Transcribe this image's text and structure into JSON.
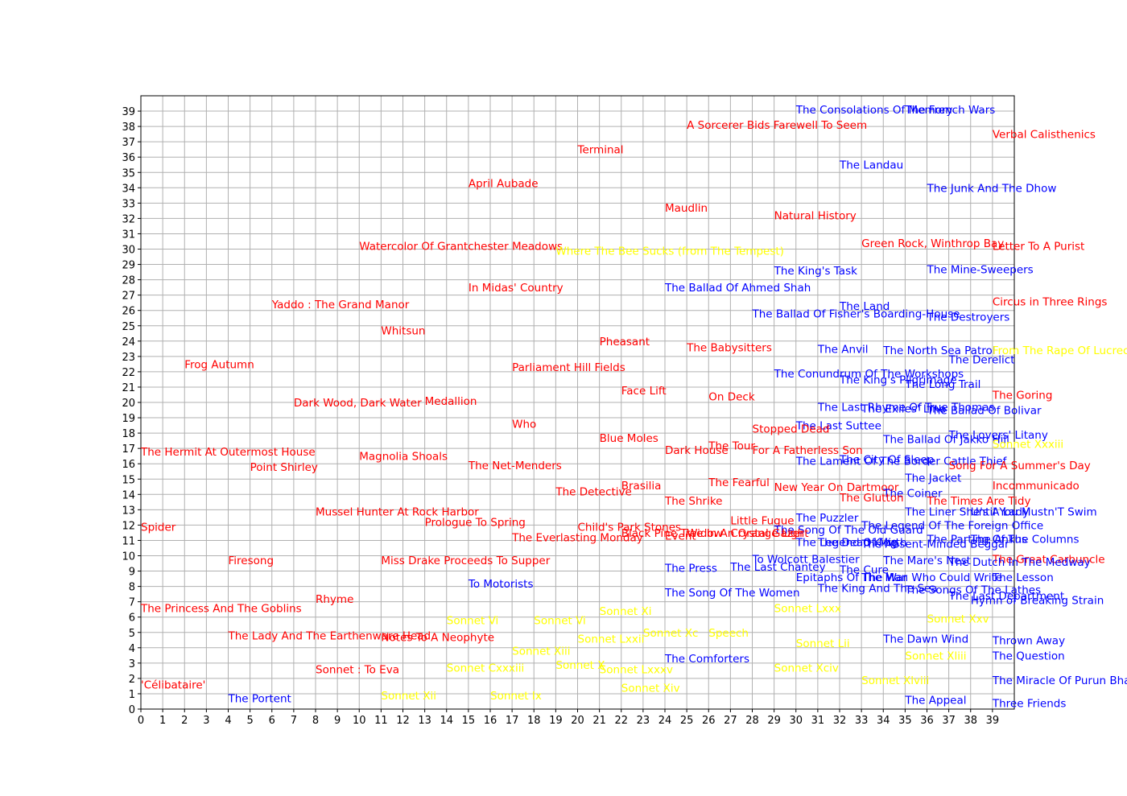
{
  "chart_data": {
    "type": "scatter",
    "title": "",
    "xlabel": "",
    "ylabel": "",
    "xlim": [
      0,
      40
    ],
    "ylim": [
      0,
      40
    ],
    "grid": true,
    "x_ticks": [
      "0",
      "1",
      "2",
      "3",
      "4",
      "5",
      "6",
      "7",
      "8",
      "9",
      "10",
      "11",
      "12",
      "13",
      "14",
      "15",
      "16",
      "17",
      "18",
      "19",
      "20",
      "21",
      "22",
      "23",
      "24",
      "25",
      "26",
      "27",
      "28",
      "29",
      "30",
      "31",
      "32",
      "33",
      "34",
      "35",
      "36",
      "37",
      "38",
      "39"
    ],
    "y_ticks": [
      "0",
      "1",
      "2",
      "3",
      "4",
      "5",
      "6",
      "7",
      "8",
      "9",
      "10",
      "11",
      "12",
      "13",
      "14",
      "15",
      "16",
      "17",
      "18",
      "19",
      "20",
      "21",
      "22",
      "23",
      "24",
      "25",
      "26",
      "27",
      "28",
      "29",
      "30",
      "31",
      "32",
      "33",
      "34",
      "35",
      "36",
      "37",
      "38",
      "39"
    ],
    "colors": {
      "red": "#ff0000",
      "blue": "#0000ff",
      "yellow": "#ffff00",
      "grid": "#b0b0b0",
      "axis": "#000000"
    },
    "points": [
      {
        "label": "The Consolations Of Memory",
        "x": 30,
        "y": 39.1,
        "color": "blue"
      },
      {
        "label": "The French Wars",
        "x": 35,
        "y": 39.1,
        "color": "blue"
      },
      {
        "label": "A Sorcerer Bids Farewell To Seem",
        "x": 25,
        "y": 38.1,
        "color": "red"
      },
      {
        "label": "Verbal Calisthenics",
        "x": 39,
        "y": 37.5,
        "color": "red"
      },
      {
        "label": "Terminal",
        "x": 20,
        "y": 36.5,
        "color": "red"
      },
      {
        "label": "The Landau",
        "x": 32,
        "y": 35.5,
        "color": "blue"
      },
      {
        "label": "April Aubade",
        "x": 15,
        "y": 34.3,
        "color": "red"
      },
      {
        "label": "The Junk And The Dhow",
        "x": 36,
        "y": 34.0,
        "color": "blue"
      },
      {
        "label": "Maudlin",
        "x": 24,
        "y": 32.7,
        "color": "red"
      },
      {
        "label": "Natural History",
        "x": 29,
        "y": 32.2,
        "color": "red"
      },
      {
        "label": "Green Rock, Winthrop Bay",
        "x": 33,
        "y": 30.4,
        "color": "red"
      },
      {
        "label": "Letter To A Purist",
        "x": 39,
        "y": 30.2,
        "color": "red"
      },
      {
        "label": "Watercolor Of Grantchester Meadows",
        "x": 10,
        "y": 30.2,
        "color": "red"
      },
      {
        "label": "Where The Bee Sucks (from The Tempest)",
        "x": 19,
        "y": 29.9,
        "color": "yellow"
      },
      {
        "label": "The Mine-Sweepers",
        "x": 36,
        "y": 28.7,
        "color": "blue"
      },
      {
        "label": "The King's Task",
        "x": 29,
        "y": 28.6,
        "color": "blue"
      },
      {
        "label": "The Ballad Of Ahmed Shah",
        "x": 24,
        "y": 27.5,
        "color": "blue"
      },
      {
        "label": "In Midas' Country",
        "x": 15,
        "y": 27.5,
        "color": "red"
      },
      {
        "label": "Circus in Three Rings",
        "x": 39,
        "y": 26.6,
        "color": "red"
      },
      {
        "label": "Yaddo : The Grand Manor",
        "x": 6,
        "y": 26.4,
        "color": "red"
      },
      {
        "label": "The Land",
        "x": 32,
        "y": 26.3,
        "color": "blue"
      },
      {
        "label": "The Ballad Of Fisher's Boarding-House",
        "x": 28,
        "y": 25.8,
        "color": "blue"
      },
      {
        "label": "The Destroyers",
        "x": 36,
        "y": 25.6,
        "color": "blue"
      },
      {
        "label": "Whitsun",
        "x": 11,
        "y": 24.7,
        "color": "red"
      },
      {
        "label": "Pheasant",
        "x": 21,
        "y": 24.0,
        "color": "red"
      },
      {
        "label": "The Babysitters",
        "x": 25,
        "y": 23.6,
        "color": "red"
      },
      {
        "label": "The Anvil",
        "x": 31,
        "y": 23.5,
        "color": "blue"
      },
      {
        "label": "The North Sea Patrol",
        "x": 34,
        "y": 23.4,
        "color": "blue"
      },
      {
        "label": "From The Rape Of Lucrece",
        "x": 39,
        "y": 23.4,
        "color": "yellow"
      },
      {
        "label": "Frog Autumn",
        "x": 2,
        "y": 22.5,
        "color": "red"
      },
      {
        "label": "The Derelict",
        "x": 37,
        "y": 22.8,
        "color": "blue"
      },
      {
        "label": "Parliament Hill Fields",
        "x": 17,
        "y": 22.3,
        "color": "red"
      },
      {
        "label": "The Conundrum Of The Workshops",
        "x": 29,
        "y": 21.9,
        "color": "blue"
      },
      {
        "label": "The King's Pilgrimage",
        "x": 32,
        "y": 21.5,
        "color": "blue"
      },
      {
        "label": "The Long Trail",
        "x": 35,
        "y": 21.2,
        "color": "blue"
      },
      {
        "label": "Face Lift",
        "x": 22,
        "y": 20.8,
        "color": "red"
      },
      {
        "label": "On Deck",
        "x": 26,
        "y": 20.4,
        "color": "red"
      },
      {
        "label": "The Goring",
        "x": 39,
        "y": 20.5,
        "color": "red"
      },
      {
        "label": "Dark Wood, Dark Water",
        "x": 7,
        "y": 20.0,
        "color": "red"
      },
      {
        "label": "Medallion",
        "x": 13,
        "y": 20.1,
        "color": "red"
      },
      {
        "label": "The Last Rhyme Of True Thomas",
        "x": 31,
        "y": 19.7,
        "color": "blue"
      },
      {
        "label": "The Exiles' Line",
        "x": 33,
        "y": 19.6,
        "color": "blue"
      },
      {
        "label": "The Ballad Of Bolivar",
        "x": 36,
        "y": 19.5,
        "color": "blue"
      },
      {
        "label": "Who",
        "x": 17,
        "y": 18.6,
        "color": "red"
      },
      {
        "label": "The Last Suttee",
        "x": 30,
        "y": 18.5,
        "color": "blue"
      },
      {
        "label": "Stopped Dead",
        "x": 28,
        "y": 18.3,
        "color": "red"
      },
      {
        "label": "The Lovers' Litany",
        "x": 37,
        "y": 17.9,
        "color": "blue"
      },
      {
        "label": "Blue Moles",
        "x": 21,
        "y": 17.7,
        "color": "red"
      },
      {
        "label": "The  Ballad Of Jakko Hill",
        "x": 34,
        "y": 17.6,
        "color": "blue"
      },
      {
        "label": "Sonnet Xxxiii",
        "x": 39,
        "y": 17.3,
        "color": "yellow"
      },
      {
        "label": "The Tour",
        "x": 26,
        "y": 17.2,
        "color": "red"
      },
      {
        "label": "Dark House",
        "x": 24,
        "y": 16.9,
        "color": "red"
      },
      {
        "label": "For A Fatherless Son",
        "x": 28,
        "y": 16.9,
        "color": "red"
      },
      {
        "label": "The Hermit At Outermost House",
        "x": 0,
        "y": 16.8,
        "color": "red"
      },
      {
        "label": "Magnolia Shoals",
        "x": 10,
        "y": 16.5,
        "color": "red"
      },
      {
        "label": "The Lament Of The Border Cattle Thief",
        "x": 30,
        "y": 16.2,
        "color": "blue"
      },
      {
        "label": "The City Of Sleep",
        "x": 32,
        "y": 16.3,
        "color": "blue"
      },
      {
        "label": "Point Shirley",
        "x": 5,
        "y": 15.8,
        "color": "red"
      },
      {
        "label": "The Net-Menders",
        "x": 15,
        "y": 15.9,
        "color": "red"
      },
      {
        "label": "Song For A Summer's Day",
        "x": 37,
        "y": 15.9,
        "color": "red"
      },
      {
        "label": "The Jacket",
        "x": 35,
        "y": 15.1,
        "color": "blue"
      },
      {
        "label": "The Fearful",
        "x": 26,
        "y": 14.8,
        "color": "red"
      },
      {
        "label": "Brasilia",
        "x": 22,
        "y": 14.6,
        "color": "red"
      },
      {
        "label": "Incommunicado",
        "x": 39,
        "y": 14.6,
        "color": "red"
      },
      {
        "label": "New Year On Dartmoor",
        "x": 29,
        "y": 14.5,
        "color": "red"
      },
      {
        "label": "The Detective",
        "x": 19,
        "y": 14.2,
        "color": "red"
      },
      {
        "label": "The Coiner",
        "x": 34,
        "y": 14.1,
        "color": "blue"
      },
      {
        "label": "The Glutton",
        "x": 32,
        "y": 13.8,
        "color": "red"
      },
      {
        "label": "The Shrike",
        "x": 24,
        "y": 13.6,
        "color": "red"
      },
      {
        "label": "The Times Are Tidy",
        "x": 36,
        "y": 13.6,
        "color": "red"
      },
      {
        "label": "The Liner She's A Lady",
        "x": 35,
        "y": 12.9,
        "color": "blue"
      },
      {
        "label": "Until You Mustn'T Swim",
        "x": 38,
        "y": 12.9,
        "color": "blue"
      },
      {
        "label": "Mussel Hunter At Rock Harbor",
        "x": 8,
        "y": 12.9,
        "color": "red"
      },
      {
        "label": "The Puzzler",
        "x": 30,
        "y": 12.5,
        "color": "blue"
      },
      {
        "label": "Little Fugue",
        "x": 27,
        "y": 12.3,
        "color": "red"
      },
      {
        "label": "Prologue To Spring",
        "x": 13,
        "y": 12.2,
        "color": "red"
      },
      {
        "label": "The Legend Of The Foreign Office",
        "x": 33,
        "y": 12.0,
        "color": "blue"
      },
      {
        "label": "Spider",
        "x": 0,
        "y": 11.9,
        "color": "red"
      },
      {
        "label": "Child's Park Stones",
        "x": 20,
        "y": 11.9,
        "color": "red"
      },
      {
        "label": "The Song Of The Old Guard",
        "x": 29,
        "y": 11.7,
        "color": "blue"
      },
      {
        "label": "Widow",
        "x": 25,
        "y": 11.5,
        "color": "red"
      },
      {
        "label": "Event",
        "x": 24,
        "y": 11.3,
        "color": "red"
      },
      {
        "label": "Black Pine Tree In An Orange Light",
        "x": 22,
        "y": 11.5,
        "color": "red"
      },
      {
        "label": "The Everlasting Monday",
        "x": 17,
        "y": 11.2,
        "color": "red"
      },
      {
        "label": "Crystal Gazer",
        "x": 27,
        "y": 11.5,
        "color": "red"
      },
      {
        "label": "The Parting Of The Columns",
        "x": 36,
        "y": 11.1,
        "color": "blue"
      },
      {
        "label": "The Ankus",
        "x": 38,
        "y": 11.1,
        "color": "blue"
      },
      {
        "label": "The Legend Of Mirth",
        "x": 30,
        "y": 10.9,
        "color": "blue"
      },
      {
        "label": "The Dead King",
        "x": 31,
        "y": 10.9,
        "color": "blue"
      },
      {
        "label": "The Absent-Minded Beggar",
        "x": 33,
        "y": 10.8,
        "color": "blue"
      },
      {
        "label": "Firesong",
        "x": 4,
        "y": 9.7,
        "color": "red"
      },
      {
        "label": "Miss Drake Proceeds To Supper",
        "x": 11,
        "y": 9.7,
        "color": "red"
      },
      {
        "label": "To Wolcott Balestier",
        "x": 28,
        "y": 9.8,
        "color": "blue"
      },
      {
        "label": "The Great Carbuncle",
        "x": 39,
        "y": 9.8,
        "color": "red"
      },
      {
        "label": "The Mare's Nest",
        "x": 34,
        "y": 9.7,
        "color": "blue"
      },
      {
        "label": "The Dutch In The Medway",
        "x": 37,
        "y": 9.6,
        "color": "blue"
      },
      {
        "label": "The Press",
        "x": 24,
        "y": 9.2,
        "color": "blue"
      },
      {
        "label": "The Last Chantey",
        "x": 27,
        "y": 9.3,
        "color": "blue"
      },
      {
        "label": "The Cure",
        "x": 32,
        "y": 9.1,
        "color": "blue"
      },
      {
        "label": "Epitaphs Of The War",
        "x": 30,
        "y": 8.6,
        "color": "blue"
      },
      {
        "label": "The Man Who Could Write",
        "x": 33,
        "y": 8.6,
        "color": "blue"
      },
      {
        "label": "The Lesson",
        "x": 39,
        "y": 8.6,
        "color": "blue"
      },
      {
        "label": "To Motorists",
        "x": 15,
        "y": 8.2,
        "color": "blue"
      },
      {
        "label": "The King And The Sea",
        "x": 31,
        "y": 7.9,
        "color": "blue"
      },
      {
        "label": "The Songs Of The Lathes",
        "x": 35,
        "y": 7.8,
        "color": "blue"
      },
      {
        "label": "The Song Of The Women",
        "x": 24,
        "y": 7.6,
        "color": "blue"
      },
      {
        "label": "The Last Department",
        "x": 37,
        "y": 7.4,
        "color": "blue"
      },
      {
        "label": "Hymn of Breaking Strain",
        "x": 38,
        "y": 7.1,
        "color": "blue"
      },
      {
        "label": "Rhyme",
        "x": 8,
        "y": 7.2,
        "color": "red"
      },
      {
        "label": "The Princess And The Goblins",
        "x": 0,
        "y": 6.6,
        "color": "red"
      },
      {
        "label": "The Lady And The Earthenware Head",
        "x": 4,
        "y": 4.8,
        "color": "red"
      },
      {
        "label": "Notes To A Neophyte",
        "x": 11,
        "y": 4.7,
        "color": "red"
      },
      {
        "label": "The Dawn Wind",
        "x": 34,
        "y": 4.6,
        "color": "blue"
      },
      {
        "label": "Thrown Away",
        "x": 39,
        "y": 4.5,
        "color": "blue"
      },
      {
        "label": "The Comforters",
        "x": 24,
        "y": 3.3,
        "color": "blue"
      },
      {
        "label": "The Question",
        "x": 39,
        "y": 3.5,
        "color": "blue"
      },
      {
        "label": "Sonnet : To Eva",
        "x": 8,
        "y": 2.6,
        "color": "red"
      },
      {
        "label": "The Miracle Of Purun Bhagat",
        "x": 39,
        "y": 1.9,
        "color": "blue"
      },
      {
        "label": "'Célibataire'",
        "x": 0,
        "y": 1.6,
        "color": "red"
      },
      {
        "label": "The Portent",
        "x": 4,
        "y": 0.7,
        "color": "blue"
      },
      {
        "label": "The Appeal",
        "x": 35,
        "y": 0.6,
        "color": "blue"
      },
      {
        "label": "Three Friends",
        "x": 39,
        "y": 0.4,
        "color": "blue"
      },
      {
        "label": "Sonnet Vi",
        "x": 14,
        "y": 5.8,
        "color": "yellow"
      },
      {
        "label": "Sonnet Vi",
        "x": 18,
        "y": 5.8,
        "color": "yellow"
      },
      {
        "label": "Sonnet Xi",
        "x": 21,
        "y": 6.4,
        "color": "yellow"
      },
      {
        "label": "Sonnet Lxxx",
        "x": 29,
        "y": 6.6,
        "color": "yellow"
      },
      {
        "label": "Sonnet Xc",
        "x": 23,
        "y": 5.0,
        "color": "yellow"
      },
      {
        "label": "Sonnet Lxxii",
        "x": 20,
        "y": 4.6,
        "color": "yellow"
      },
      {
        "label": "Sonnet Xiii",
        "x": 17,
        "y": 3.8,
        "color": "yellow"
      },
      {
        "label": "Sonnet Cxxxiii",
        "x": 14,
        "y": 2.7,
        "color": "yellow"
      },
      {
        "label": "Sonnet X",
        "x": 19,
        "y": 2.9,
        "color": "yellow"
      },
      {
        "label": "Sonnet Lxxxv",
        "x": 21,
        "y": 2.6,
        "color": "yellow"
      },
      {
        "label": "Sonnet Xiv",
        "x": 22,
        "y": 1.4,
        "color": "yellow"
      },
      {
        "label": "Sonnet Xii",
        "x": 11,
        "y": 0.9,
        "color": "yellow"
      },
      {
        "label": "Sonnet Ix",
        "x": 16,
        "y": 0.9,
        "color": "yellow"
      },
      {
        "label": "Sonnet Xliii",
        "x": 35,
        "y": 3.5,
        "color": "yellow"
      },
      {
        "label": "Sonnet Xxv",
        "x": 36,
        "y": 5.9,
        "color": "yellow"
      },
      {
        "label": "Speech",
        "x": 26,
        "y": 5.0,
        "color": "yellow"
      },
      {
        "label": "Sonnet Lii",
        "x": 30,
        "y": 4.3,
        "color": "yellow"
      },
      {
        "label": "Sonnet Xlviii",
        "x": 33,
        "y": 1.9,
        "color": "yellow"
      },
      {
        "label": "Sonnet Xciv",
        "x": 29,
        "y": 2.7,
        "color": "yellow"
      }
    ]
  }
}
